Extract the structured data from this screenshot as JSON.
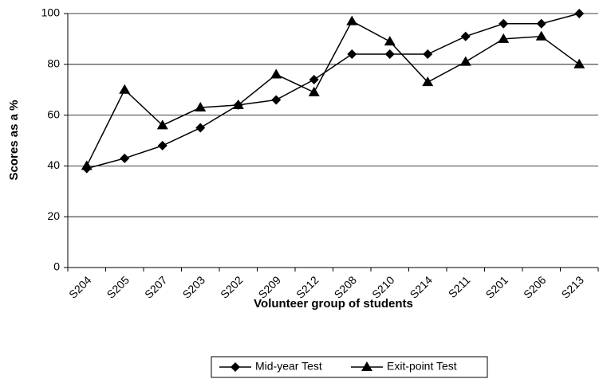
{
  "chart_data": {
    "type": "line",
    "xlabel": "Volunteer group of students",
    "ylabel": "Scores as a %",
    "categories": [
      "S204",
      "S205",
      "S207",
      "S203",
      "S202",
      "S209",
      "S212",
      "S208",
      "S210",
      "S214",
      "S211",
      "S201",
      "S206",
      "S213"
    ],
    "series": [
      {
        "name": "Mid-year Test",
        "color": "#000000",
        "marker": "diamond",
        "values": [
          39,
          43,
          48,
          55,
          64,
          66,
          74,
          84,
          84,
          84,
          91,
          96,
          96,
          100
        ]
      },
      {
        "name": "Exit-point Test",
        "color": "#000000",
        "marker": "triangle",
        "values": [
          40,
          70,
          56,
          63,
          64,
          76,
          69,
          97,
          89,
          73,
          81,
          90,
          91,
          80
        ]
      }
    ],
    "ylim": [
      0,
      100
    ],
    "yticks": [
      0,
      20,
      40,
      60,
      80,
      100
    ],
    "grid": true,
    "legend": "bottom"
  }
}
